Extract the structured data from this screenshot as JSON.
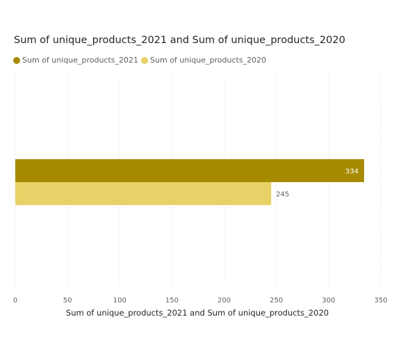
{
  "chart_data": {
    "type": "bar",
    "orientation": "horizontal",
    "title": "Sum of unique_products_2021 and Sum of unique_products_2020",
    "xlabel": "Sum of unique_products_2021 and Sum of unique_products_2020",
    "ylabel": "",
    "categories": [
      ""
    ],
    "series": [
      {
        "name": "Sum of unique_products_2021",
        "values": [
          334
        ],
        "color": "#a68a00",
        "label_color": "#ffffff"
      },
      {
        "name": "Sum of unique_products_2020",
        "values": [
          245
        ],
        "color": "#e8d166",
        "label_color": "#605e5c"
      }
    ],
    "xlim": [
      0,
      350
    ],
    "xticks": [
      0,
      50,
      100,
      150,
      200,
      250,
      300,
      350
    ],
    "grid": "vertical dotted",
    "legend": "top-left"
  }
}
